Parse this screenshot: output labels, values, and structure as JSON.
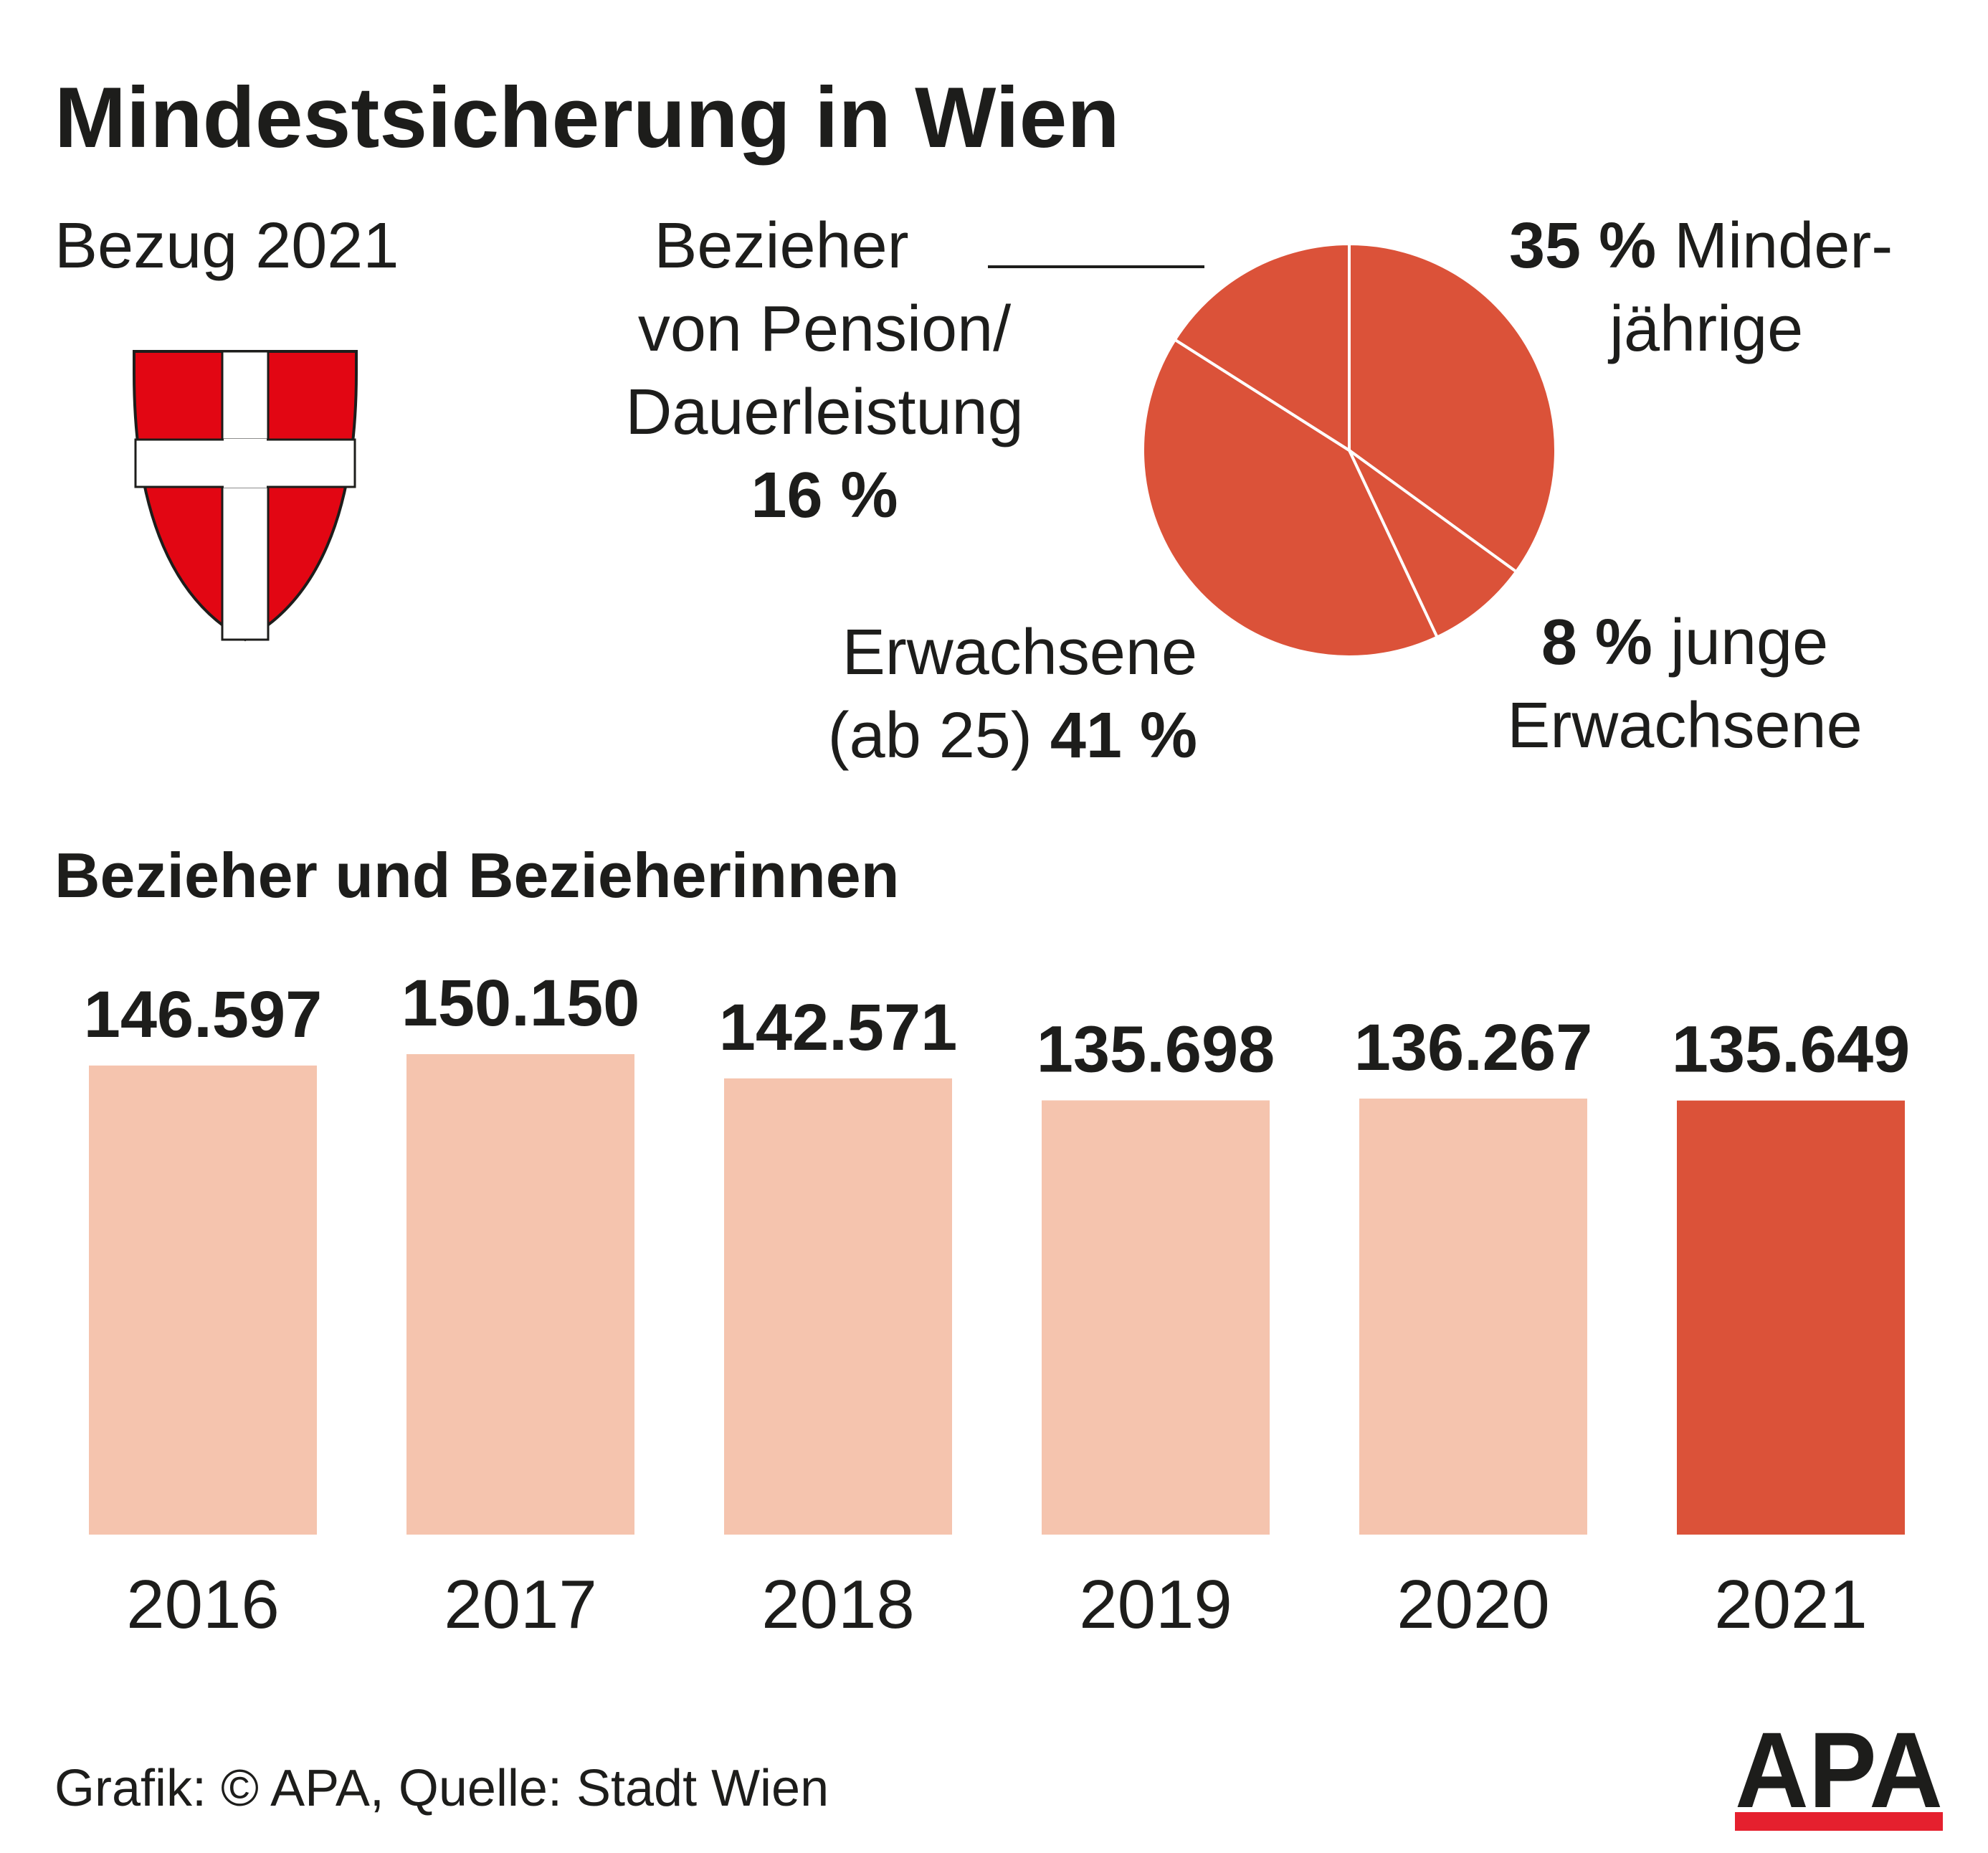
{
  "title": "Mindestsicherung in Wien",
  "pie_subtitle": "Bezug 2021",
  "bar_title": "Bezieher und Bezieherinnen",
  "source": "Grafik: © APA, Quelle: Stadt Wien",
  "logo_text": "APA",
  "colors": {
    "pie": "#db5239",
    "bar_light": "#f5c4ae",
    "bar_highlight": "#db5239",
    "text": "#1d1d1b",
    "coat_red": "#e20613",
    "logo_red": "#e5202e"
  },
  "chart_data": [
    {
      "type": "pie",
      "title": "Bezug 2021",
      "slices": [
        {
          "label": "Minderjährige",
          "value": 35,
          "display_label": "Minder-",
          "display_label_2": "jährige",
          "pct_text": "35 %"
        },
        {
          "label": "junge Erwachsene",
          "value": 8,
          "display_label": "junge",
          "display_label_2": "Erwachsene",
          "pct_text": "8 %"
        },
        {
          "label": "Erwachsene (ab 25)",
          "value": 41,
          "display_label": "Erwachsene",
          "display_label_2": "(ab 25)",
          "pct_text": "41 %"
        },
        {
          "label": "Bezieher von Pension/Dauerleistung",
          "value": 16,
          "display_label": "Bezieher",
          "display_label_2": "von Pension/",
          "display_label_3": "Dauerleistung",
          "pct_text": "16 %"
        }
      ]
    },
    {
      "type": "bar",
      "title": "Bezieher und Bezieherinnen",
      "categories": [
        "2016",
        "2017",
        "2018",
        "2019",
        "2020",
        "2021"
      ],
      "values": [
        146597,
        150150,
        142571,
        135698,
        136267,
        135649
      ],
      "value_labels": [
        "146.597",
        "150.150",
        "142.571",
        "135.698",
        "136.267",
        "135.649"
      ],
      "highlight": "2021",
      "grid": false,
      "xlabel": "",
      "ylabel": ""
    }
  ]
}
